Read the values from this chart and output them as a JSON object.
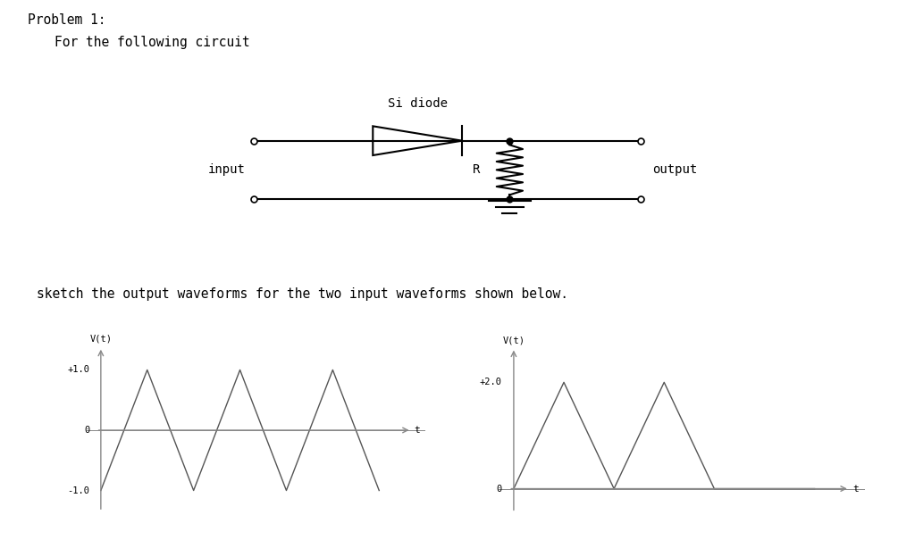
{
  "title_line1": "Problem 1:",
  "title_line2": "    For the following circuit",
  "sketch_text": "sketch the output waveforms for the two input waveforms shown below.",
  "circuit": {
    "si_diode_label": "Si diode",
    "input_label": "input",
    "output_label": "output",
    "R_label": "R"
  },
  "graph1": {
    "ylabel": "V(t)",
    "xlabel": "t",
    "ytick_labels": [
      "+1.0",
      "0",
      "-1.0"
    ],
    "ytick_values": [
      1.0,
      0.0,
      -1.0
    ],
    "x_points": [
      0.0,
      0.5,
      1.0,
      1.5,
      2.0,
      2.5,
      3.0
    ],
    "y_points": [
      -1.0,
      1.0,
      -1.0,
      1.0,
      -1.0,
      1.0,
      -1.0
    ],
    "color": "#555555"
  },
  "graph2": {
    "ylabel": "V(t)",
    "xlabel": "t",
    "ytick_labels": [
      "+2.0",
      "0"
    ],
    "ytick_values": [
      2.0,
      0.0
    ],
    "x_points": [
      0.0,
      0.5,
      1.0,
      1.5,
      2.0,
      3.0
    ],
    "y_points": [
      0.0,
      2.0,
      0.0,
      2.0,
      0.0,
      0.0
    ],
    "color": "#555555"
  },
  "bg_color": "#ffffff",
  "text_color": "#000000",
  "line_color": "#888888"
}
